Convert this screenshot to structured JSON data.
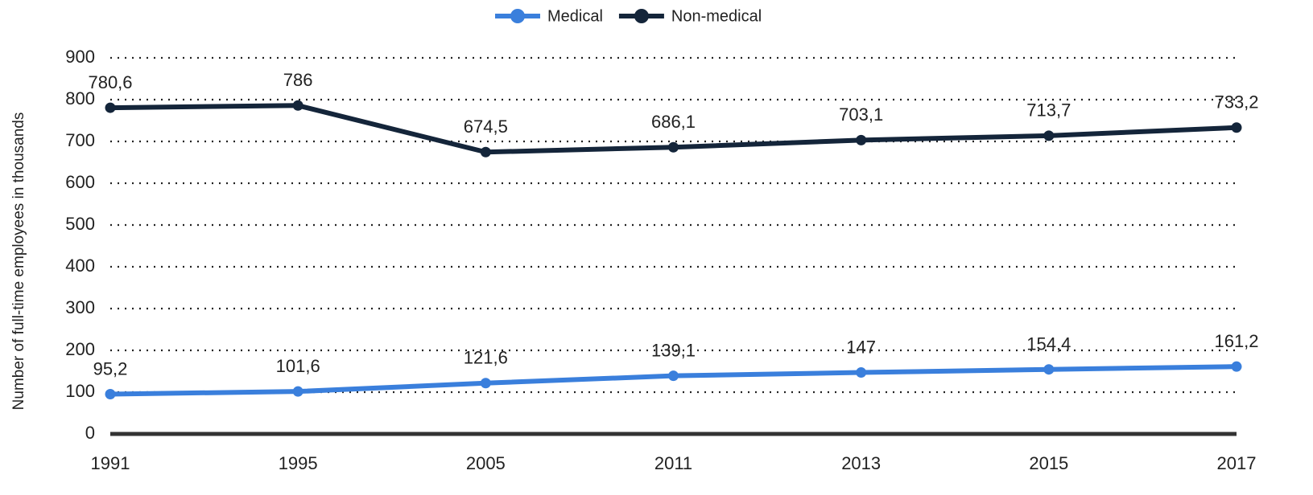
{
  "chart_data": {
    "type": "line",
    "y_label": "Number of full-time employees in thousands",
    "categories": [
      "1991",
      "1995",
      "2005",
      "2011",
      "2013",
      "2015",
      "2017"
    ],
    "series": [
      {
        "name": "Medical",
        "color": "#3a7fdc",
        "values": [
          95.2,
          101.6,
          121.6,
          139.1,
          147,
          154.4,
          161.2
        ],
        "value_labels": [
          "95,2",
          "101,6",
          "121,6",
          "139,1",
          "147",
          "154,4",
          "161,2"
        ]
      },
      {
        "name": "Non-medical",
        "color": "#14253a",
        "values": [
          780.6,
          786,
          674.5,
          686.1,
          703.1,
          713.7,
          733.2
        ],
        "value_labels": [
          "780,6",
          "786",
          "674,5",
          "686,1",
          "703,1",
          "713,7",
          "733,2"
        ]
      }
    ],
    "ylim": [
      0,
      900
    ],
    "yticks": [
      0,
      100,
      200,
      300,
      400,
      500,
      600,
      700,
      800,
      900
    ],
    "grid": true,
    "legend": "top"
  }
}
